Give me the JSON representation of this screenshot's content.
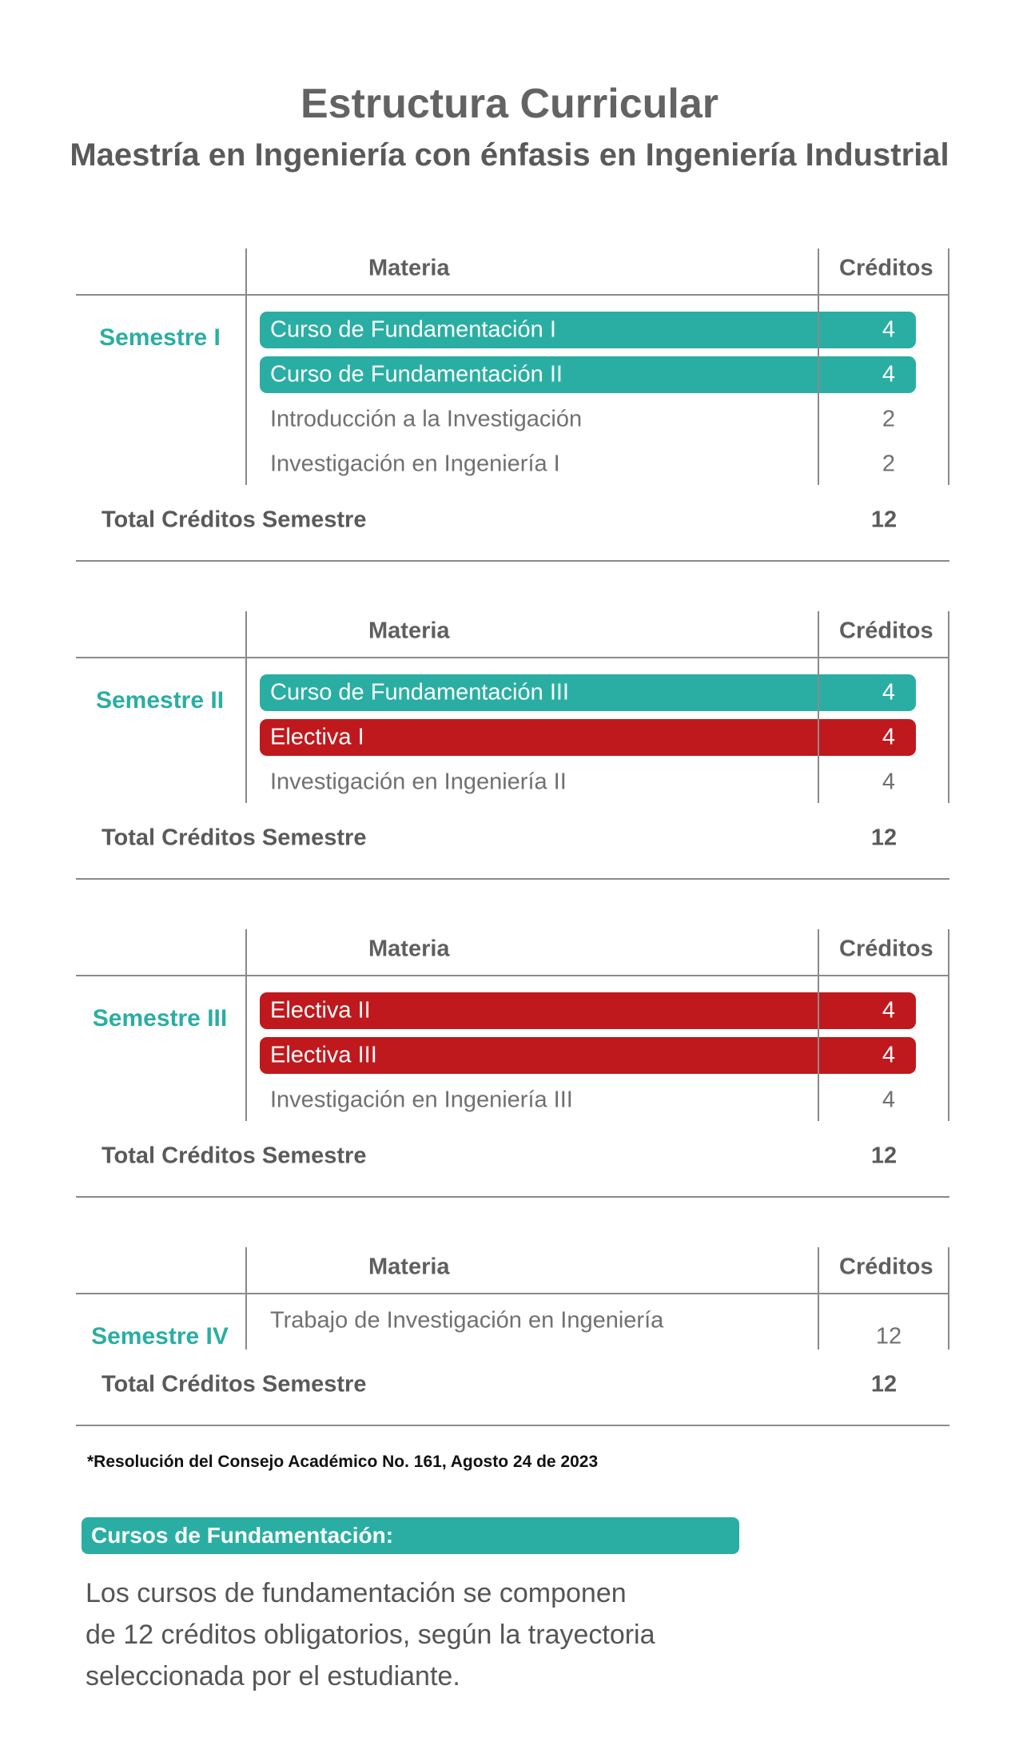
{
  "header": {
    "title": "Estructura Curricular",
    "subtitle": "Maestría en Ingeniería con énfasis en Ingeniería Industrial"
  },
  "semesters": [
    {
      "label": "Semestre I",
      "column_headers": [
        "Materia",
        "Créditos"
      ],
      "courses": [
        {
          "name": "Curso de Fundamentación I",
          "credits": 4,
          "color": "#2aaea3"
        },
        {
          "name": "Curso de Fundamentación II",
          "credits": 4,
          "color": "#2aaea3"
        },
        {
          "name": "Introducción a la Investigación",
          "credits": 2
        },
        {
          "name": "Investigación en Ingeniería I",
          "credits": 2
        }
      ],
      "total_label": "Total Créditos Semestre",
      "total": 12
    },
    {
      "label": "Semestre II",
      "column_headers": [
        "Materia",
        "Créditos"
      ],
      "courses": [
        {
          "name": "Curso de Fundamentación III",
          "credits": 4,
          "color": "#2aaea3"
        },
        {
          "name": "Electiva I",
          "credits": 4,
          "color": "#c0191d"
        },
        {
          "name": "Investigación en Ingeniería II",
          "credits": 4
        }
      ],
      "total_label": "Total Créditos Semestre",
      "total": 12
    },
    {
      "label": "Semestre III",
      "column_headers": [
        "Materia",
        "Créditos"
      ],
      "courses": [
        {
          "name": "Electiva II",
          "credits": 4,
          "color": "#c0191d"
        },
        {
          "name": "Electiva III",
          "credits": 4,
          "color": "#c0191d"
        },
        {
          "name": "Investigación en Ingeniería III",
          "credits": 4
        }
      ],
      "total_label": "Total Créditos Semestre",
      "total": 12
    },
    {
      "label": "Semestre IV",
      "column_headers": [
        "Materia",
        "Créditos"
      ],
      "courses": [
        {
          "name": "Trabajo de Investigación en Ingeniería",
          "credits": 12
        }
      ],
      "total_label": "Total Créditos Semestre",
      "total": 12
    }
  ],
  "footnote": "*Resolución del Consejo Académico No. 161, Agosto 24 de 2023",
  "note": {
    "title": "Cursos de Fundamentación:",
    "text": "Los cursos de fundamentación se componen de 12 créditos obligatorios, según la trayectoria seleccionada por el estudiante."
  }
}
